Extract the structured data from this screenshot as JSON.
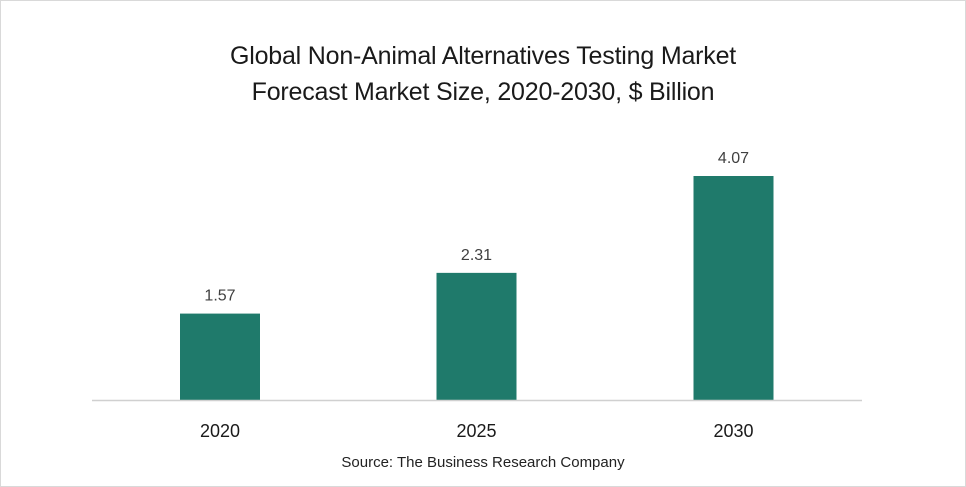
{
  "chart_data": {
    "type": "bar",
    "title": "Global Non-Animal Alternatives Testing Market",
    "subtitle": "Forecast Market Size, 2020-2030, $ Billion",
    "categories": [
      "2020",
      "2025",
      "2030"
    ],
    "values": [
      1.57,
      2.31,
      4.07
    ],
    "data_labels": [
      "1.57",
      "2.31",
      "4.07"
    ],
    "xlabel": "",
    "ylabel": "",
    "ylim": [
      0,
      4.07
    ],
    "grid": false,
    "legend": "none",
    "bar_color": "#1F7A6B",
    "source": "Source: The Business Research Company"
  }
}
